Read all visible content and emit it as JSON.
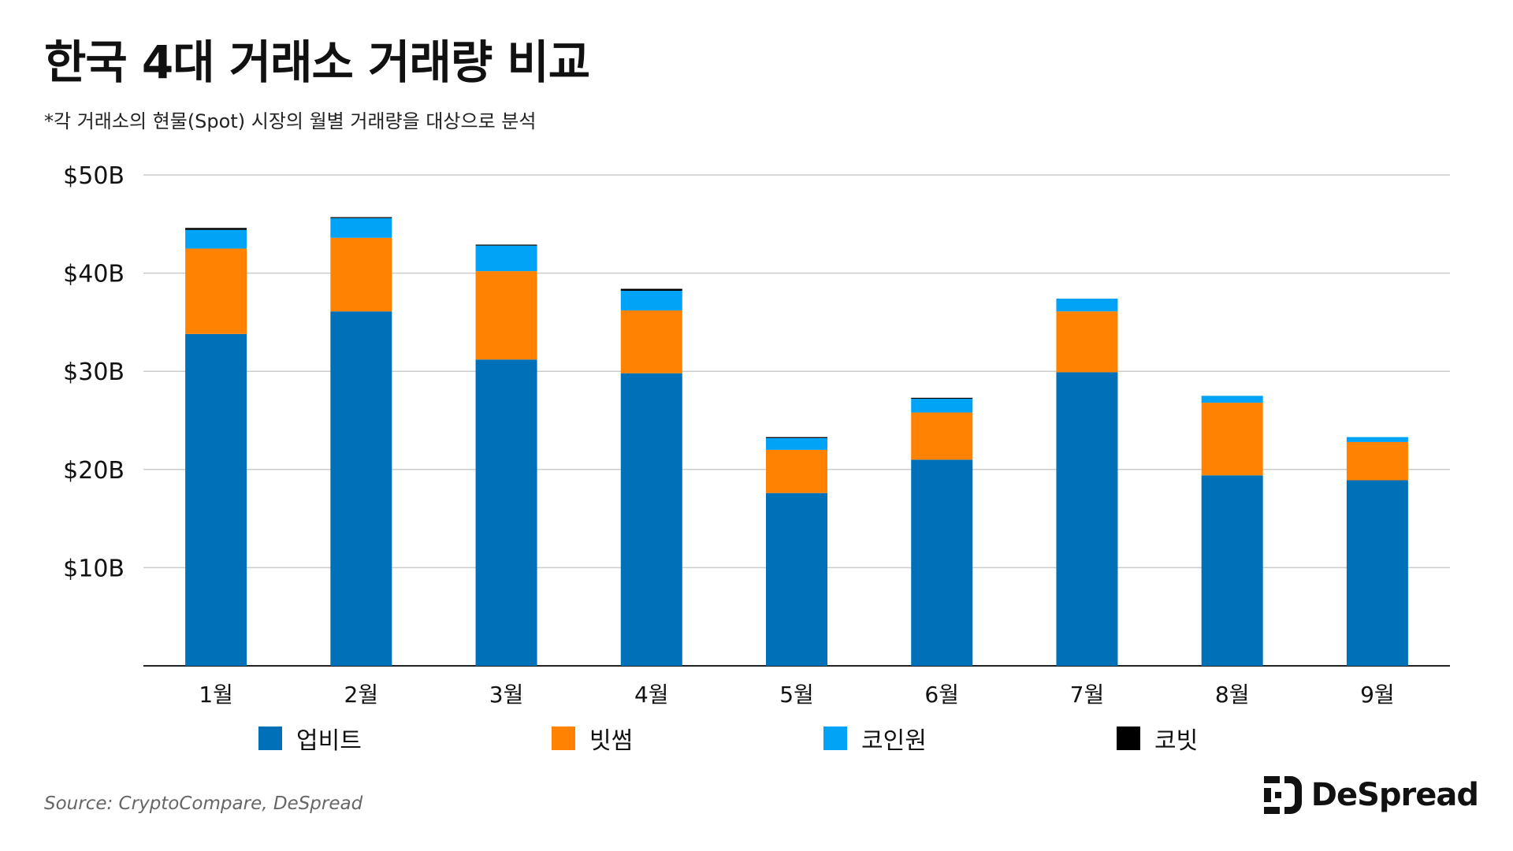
{
  "title": "한국 4대 거래소 거래량 비교",
  "subtitle": "*각 거래소의 현물(Spot) 시장의 월별 거래량을 대상으로 분석",
  "source": "Source: CryptoCompare, DeSpread",
  "logo": {
    "text": "DeSpread"
  },
  "colors": {
    "upbit": "#0070B8",
    "bithumb": "#FF8200",
    "coinone": "#00A3F5",
    "korbit": "#000000",
    "grid": "#cccccc",
    "axis": "#222222"
  },
  "chart_data": {
    "type": "bar",
    "stacked": true,
    "categories": [
      "1월",
      "2월",
      "3월",
      "4월",
      "5월",
      "6월",
      "7월",
      "8월",
      "9월"
    ],
    "series": [
      {
        "name": "업비트",
        "values": [
          33.8,
          36.1,
          31.2,
          29.8,
          17.6,
          21.0,
          29.9,
          19.4,
          18.9
        ]
      },
      {
        "name": "빗썸",
        "values": [
          8.7,
          7.5,
          9.0,
          6.4,
          4.4,
          4.8,
          6.2,
          7.4,
          3.9
        ]
      },
      {
        "name": "코인원",
        "values": [
          1.9,
          2.0,
          2.6,
          2.0,
          1.2,
          1.4,
          1.3,
          0.7,
          0.5
        ]
      },
      {
        "name": "코빗",
        "values": [
          0.2,
          0.1,
          0.1,
          0.2,
          0.1,
          0.1,
          0.0,
          0.0,
          0.0
        ]
      }
    ],
    "ylim": [
      0,
      50
    ],
    "yticks": [
      10,
      20,
      30,
      40,
      50
    ],
    "ytick_labels": [
      "$10B",
      "$20B",
      "$30B",
      "$40B",
      "$50B"
    ],
    "grid": true,
    "legend_position": "bottom"
  }
}
